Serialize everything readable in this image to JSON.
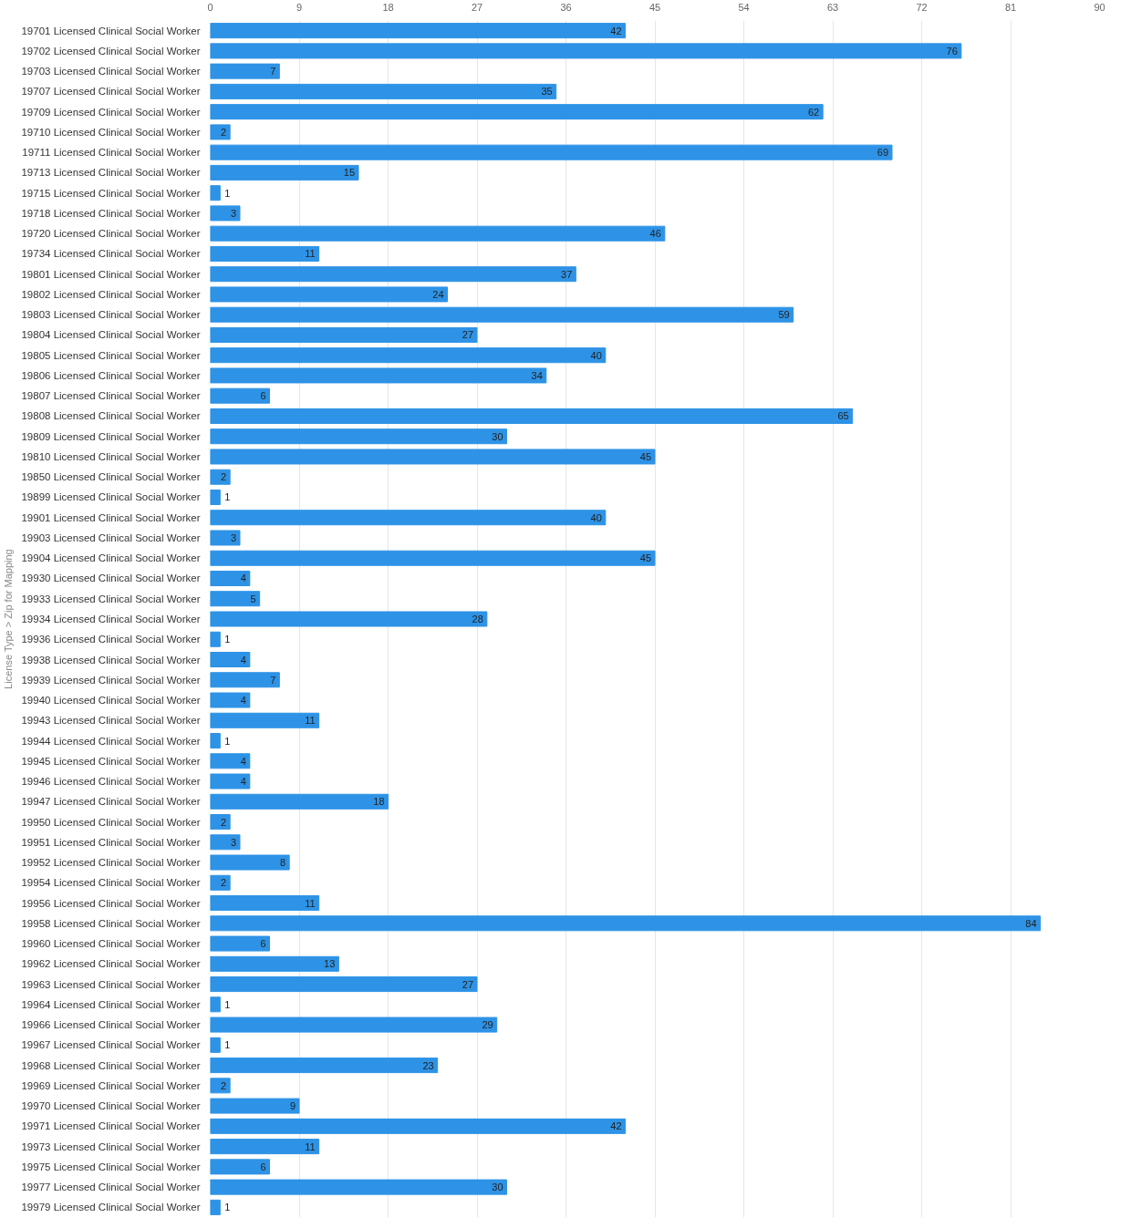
{
  "chart_data": {
    "type": "bar",
    "orientation": "horizontal",
    "ylabel": "License Type > Zip for Mapping",
    "categories": [
      "19701 Licensed Clinical Social Worker",
      "19702 Licensed Clinical Social Worker",
      "19703 Licensed Clinical Social Worker",
      "19707 Licensed Clinical Social Worker",
      "19709 Licensed Clinical Social Worker",
      "19710 Licensed Clinical Social Worker",
      "19711 Licensed Clinical Social Worker",
      "19713 Licensed Clinical Social Worker",
      "19715 Licensed Clinical Social Worker",
      "19718 Licensed Clinical Social Worker",
      "19720 Licensed Clinical Social Worker",
      "19734 Licensed Clinical Social Worker",
      "19801 Licensed Clinical Social Worker",
      "19802 Licensed Clinical Social Worker",
      "19803 Licensed Clinical Social Worker",
      "19804 Licensed Clinical Social Worker",
      "19805 Licensed Clinical Social Worker",
      "19806 Licensed Clinical Social Worker",
      "19807 Licensed Clinical Social Worker",
      "19808 Licensed Clinical Social Worker",
      "19809 Licensed Clinical Social Worker",
      "19810 Licensed Clinical Social Worker",
      "19850 Licensed Clinical Social Worker",
      "19899 Licensed Clinical Social Worker",
      "19901 Licensed Clinical Social Worker",
      "19903 Licensed Clinical Social Worker",
      "19904 Licensed Clinical Social Worker",
      "19930 Licensed Clinical Social Worker",
      "19933 Licensed Clinical Social Worker",
      "19934 Licensed Clinical Social Worker",
      "19936 Licensed Clinical Social Worker",
      "19938 Licensed Clinical Social Worker",
      "19939 Licensed Clinical Social Worker",
      "19940 Licensed Clinical Social Worker",
      "19943 Licensed Clinical Social Worker",
      "19944 Licensed Clinical Social Worker",
      "19945 Licensed Clinical Social Worker",
      "19946 Licensed Clinical Social Worker",
      "19947 Licensed Clinical Social Worker",
      "19950 Licensed Clinical Social Worker",
      "19951 Licensed Clinical Social Worker",
      "19952 Licensed Clinical Social Worker",
      "19954 Licensed Clinical Social Worker",
      "19956 Licensed Clinical Social Worker",
      "19958 Licensed Clinical Social Worker",
      "19960 Licensed Clinical Social Worker",
      "19962 Licensed Clinical Social Worker",
      "19963 Licensed Clinical Social Worker",
      "19964 Licensed Clinical Social Worker",
      "19966 Licensed Clinical Social Worker",
      "19967 Licensed Clinical Social Worker",
      "19968 Licensed Clinical Social Worker",
      "19969 Licensed Clinical Social Worker",
      "19970 Licensed Clinical Social Worker",
      "19971 Licensed Clinical Social Worker",
      "19973 Licensed Clinical Social Worker",
      "19975 Licensed Clinical Social Worker",
      "19977 Licensed Clinical Social Worker",
      "19979 Licensed Clinical Social Worker"
    ],
    "values": [
      42,
      76,
      7,
      35,
      62,
      2,
      69,
      15,
      1,
      3,
      46,
      11,
      37,
      24,
      59,
      27,
      40,
      34,
      6,
      65,
      30,
      45,
      2,
      1,
      40,
      3,
      45,
      4,
      5,
      28,
      1,
      4,
      7,
      4,
      11,
      1,
      4,
      4,
      18,
      2,
      3,
      8,
      2,
      11,
      84,
      6,
      13,
      27,
      1,
      29,
      1,
      23,
      2,
      9,
      42,
      11,
      6,
      30,
      1
    ],
    "color": "#2e93e6",
    "xlim": [
      0,
      90
    ],
    "xticks": [
      0,
      9,
      18,
      27,
      36,
      45,
      54,
      63,
      72,
      81,
      90
    ],
    "grid": "x",
    "data_labels": true
  }
}
